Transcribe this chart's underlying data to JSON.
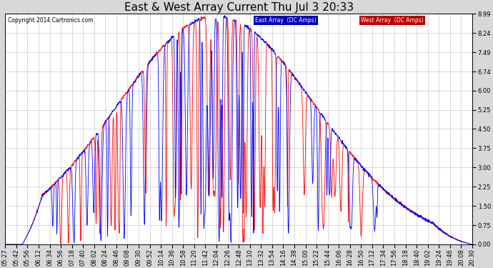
{
  "title": "East & West Array Current Thu Jul 3 20:33",
  "copyright": "Copyright 2014 Cartronics.com",
  "legend_east": "East Array  (DC Amps)",
  "legend_west": "West Array  (DC Amps)",
  "east_color": "#0000ff",
  "west_color": "#ff0000",
  "legend_east_bg": "#0000bb",
  "legend_west_bg": "#bb0000",
  "yticks": [
    0.0,
    0.75,
    1.5,
    2.25,
    3.0,
    3.75,
    4.5,
    5.25,
    6.0,
    6.74,
    7.49,
    8.24,
    8.99
  ],
  "ymax": 9.0,
  "ymin": 0.0,
  "background_color": "#d8d8d8",
  "plot_bg": "#ffffff",
  "grid_color": "#bbbbbb",
  "title_fontsize": 11,
  "tick_fontsize": 6,
  "num_points": 2000,
  "figwidth": 6.9,
  "figheight": 3.75,
  "dpi": 100
}
